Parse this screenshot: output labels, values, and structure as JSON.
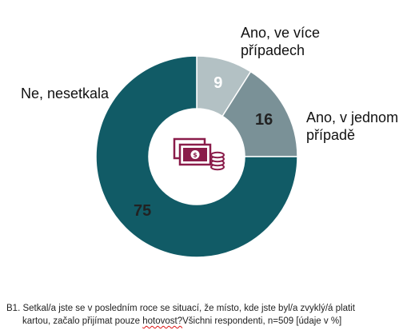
{
  "chart_data": {
    "type": "pie",
    "donut": true,
    "unit": "%",
    "slices": [
      {
        "label": "Ano, ve více případech",
        "label_lines": [
          "Ano, ve více",
          "případech"
        ],
        "value": 9,
        "color": "#b3c1c4"
      },
      {
        "label": "Ano, v jednom případě",
        "label_lines": [
          "Ano, v jednom",
          "případě"
        ],
        "value": 16,
        "color": "#7a9197"
      },
      {
        "label": "Ne, nesetkala",
        "label_lines": [
          "Ne, nesetkala"
        ],
        "value": 75,
        "color": "#115b66"
      }
    ],
    "center_icon": "cash-and-coins-icon",
    "icon_color": "#8a1c4a",
    "value_text_colors": [
      "#ffffff",
      "#222222",
      "#222222"
    ]
  },
  "footnote": {
    "line1": "B1. Setkal/a jste se v posledním roce se situací, že místo, kde jste byl/a zvyklý/á platit",
    "line2_before": "kartou, začalo přijímat pouze ",
    "line2_underlined": "hotovost?",
    "line2_after": "Všichni respondenti, n=509 [údaje v %]"
  }
}
